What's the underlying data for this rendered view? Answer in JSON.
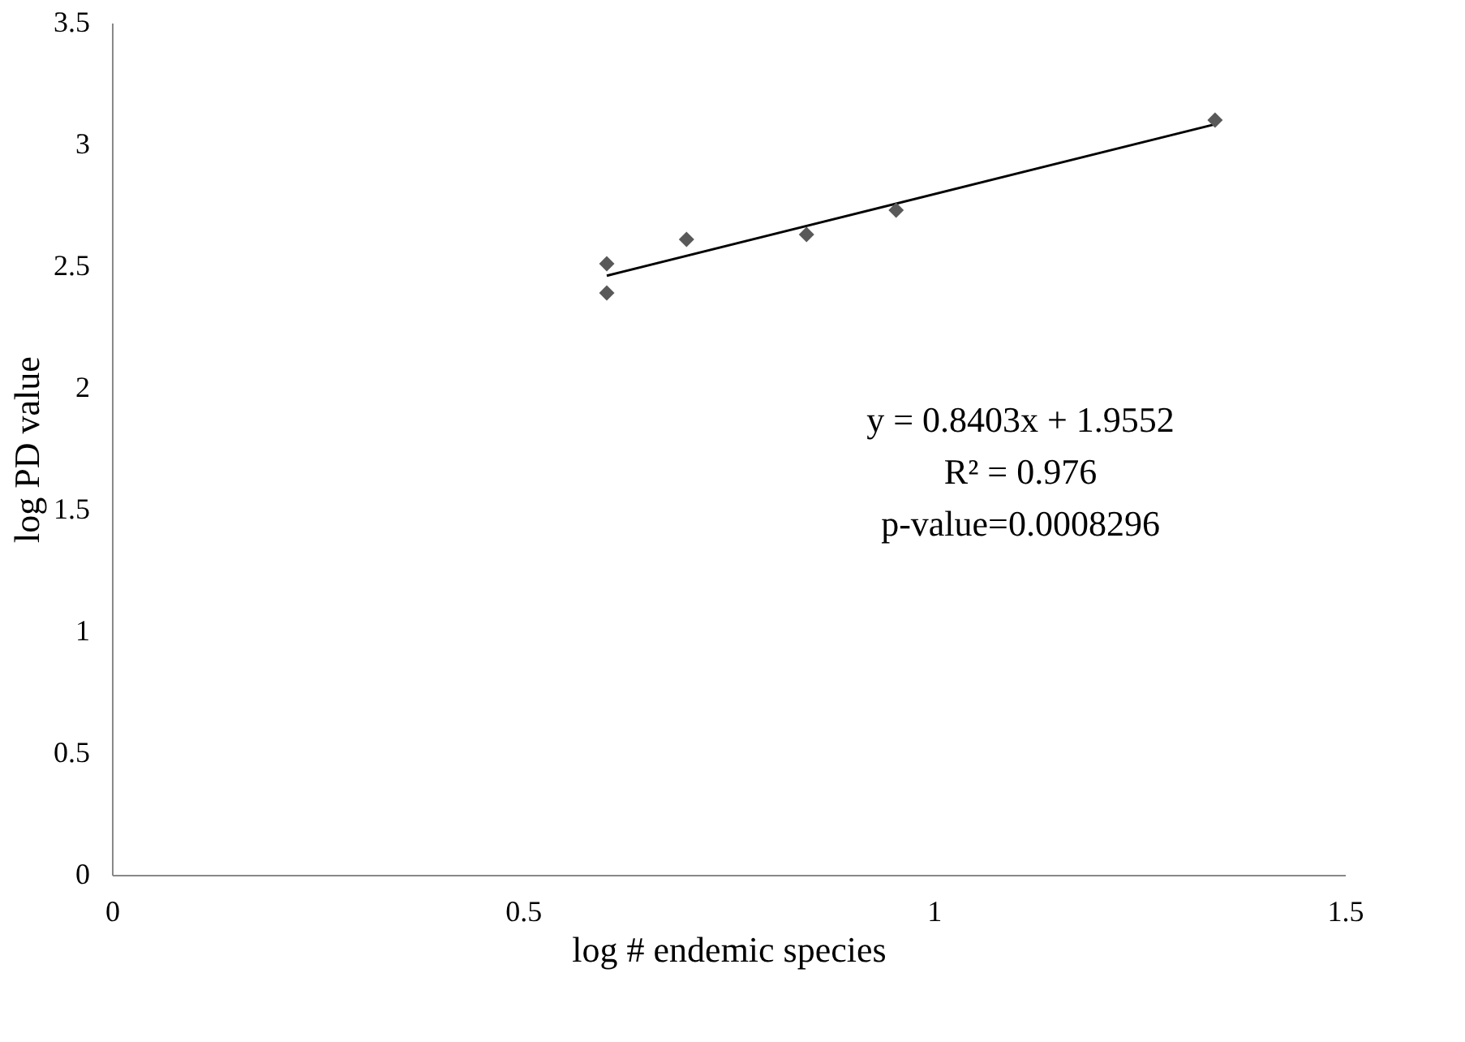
{
  "chart_data": {
    "type": "scatter",
    "xlabel": "log # endemic species",
    "ylabel": "log PD value",
    "x": [
      0.602,
      0.602,
      0.699,
      0.845,
      0.954,
      1.342
    ],
    "series": [
      {
        "color": "#595959",
        "marker": "diamond",
        "values": [
          2.51,
          2.39,
          2.61,
          2.63,
          2.73,
          3.1
        ]
      },
      {
        "type": "line",
        "color": "#000000",
        "x": [
          0.602,
          1.342
        ],
        "values": [
          2.461,
          3.083
        ]
      }
    ],
    "xlim": [
      0,
      1.5
    ],
    "xticks": [
      0,
      0.5,
      1,
      1.5
    ],
    "ylim": [
      0,
      3.5
    ],
    "yticks": [
      0,
      0.5,
      1,
      1.5,
      2,
      2.5,
      3,
      3.5
    ],
    "grid": false,
    "legend": false,
    "annotations": [
      "y = 0.8403x + 1.9552",
      "R² = 0.976",
      "p-value=0.0008296"
    ]
  }
}
